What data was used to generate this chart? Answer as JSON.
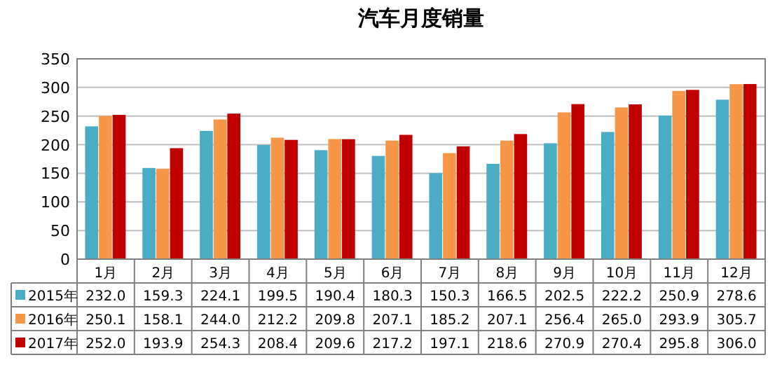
{
  "chart_data": {
    "type": "bar",
    "title": "汽车月度销量",
    "categories": [
      "1月",
      "2月",
      "3月",
      "4月",
      "5月",
      "6月",
      "7月",
      "8月",
      "9月",
      "10月",
      "11月",
      "12月"
    ],
    "series": [
      {
        "name": "2015年",
        "color": "#4bacc6",
        "values": [
          232.0,
          159.3,
          224.1,
          199.5,
          190.4,
          180.3,
          150.3,
          166.5,
          202.5,
          222.2,
          250.9,
          278.6
        ],
        "value_labels": [
          "232.0",
          "159.3",
          "224.1",
          "199.5",
          "190.4",
          "180.3",
          "150.3",
          "166.5",
          "202.5",
          "222.2",
          "250.9",
          "278.6"
        ]
      },
      {
        "name": "2016年",
        "color": "#f79646",
        "values": [
          250.1,
          158.1,
          244.0,
          212.2,
          209.8,
          207.1,
          185.2,
          207.1,
          256.4,
          265.0,
          293.9,
          305.7
        ],
        "value_labels": [
          "250.1",
          "158.1",
          "244.0",
          "212.2",
          "209.8",
          "207.1",
          "185.2",
          "207.1",
          "256.4",
          "265.0",
          "293.9",
          "305.7"
        ]
      },
      {
        "name": "2017年",
        "color": "#c00000",
        "values": [
          252.0,
          193.9,
          254.3,
          208.4,
          209.6,
          217.2,
          197.1,
          218.6,
          270.9,
          270.4,
          295.8,
          306.0
        ],
        "value_labels": [
          "252.0",
          "193.9",
          "254.3",
          "208.4",
          "209.6",
          "217.2",
          "197.1",
          "218.6",
          "270.9",
          "270.4",
          "295.8",
          "306.0"
        ]
      }
    ],
    "ylim": [
      0,
      350
    ],
    "yticks": [
      0,
      50,
      100,
      150,
      200,
      250,
      300,
      350
    ],
    "grid": "y",
    "legend": "bottom"
  }
}
